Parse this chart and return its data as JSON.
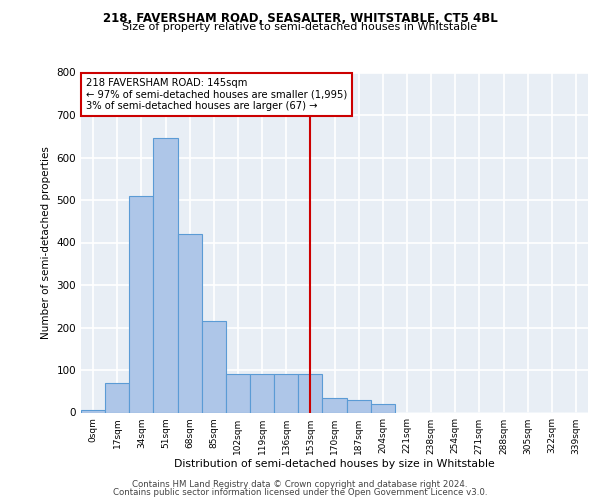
{
  "title1": "218, FAVERSHAM ROAD, SEASALTER, WHITSTABLE, CT5 4BL",
  "title2": "Size of property relative to semi-detached houses in Whitstable",
  "xlabel": "Distribution of semi-detached houses by size in Whitstable",
  "ylabel": "Number of semi-detached properties",
  "bar_labels": [
    "0sqm",
    "17sqm",
    "34sqm",
    "51sqm",
    "68sqm",
    "85sqm",
    "102sqm",
    "119sqm",
    "136sqm",
    "153sqm",
    "170sqm",
    "187sqm",
    "204sqm",
    "221sqm",
    "238sqm",
    "254sqm",
    "271sqm",
    "288sqm",
    "305sqm",
    "322sqm",
    "339sqm"
  ],
  "bar_values": [
    5,
    70,
    510,
    645,
    420,
    215,
    90,
    90,
    90,
    90,
    35,
    30,
    20,
    0,
    0,
    0,
    0,
    0,
    0,
    0,
    0
  ],
  "bar_color": "#aec6e8",
  "bar_edge_color": "#5b9bd5",
  "vline_x": 9.0,
  "vline_color": "#cc0000",
  "annotation_line1": "218 FAVERSHAM ROAD: 145sqm",
  "annotation_line2": "← 97% of semi-detached houses are smaller (1,995)",
  "annotation_line3": "3% of semi-detached houses are larger (67) →",
  "annotation_box_color": "#cc0000",
  "ylim": [
    0,
    800
  ],
  "yticks": [
    0,
    100,
    200,
    300,
    400,
    500,
    600,
    700,
    800
  ],
  "footnote1": "Contains HM Land Registry data © Crown copyright and database right 2024.",
  "footnote2": "Contains public sector information licensed under the Open Government Licence v3.0.",
  "bg_color": "#e8eef5",
  "grid_color": "#ffffff",
  "title1_fontsize": 8.5,
  "title2_fontsize": 8.0
}
